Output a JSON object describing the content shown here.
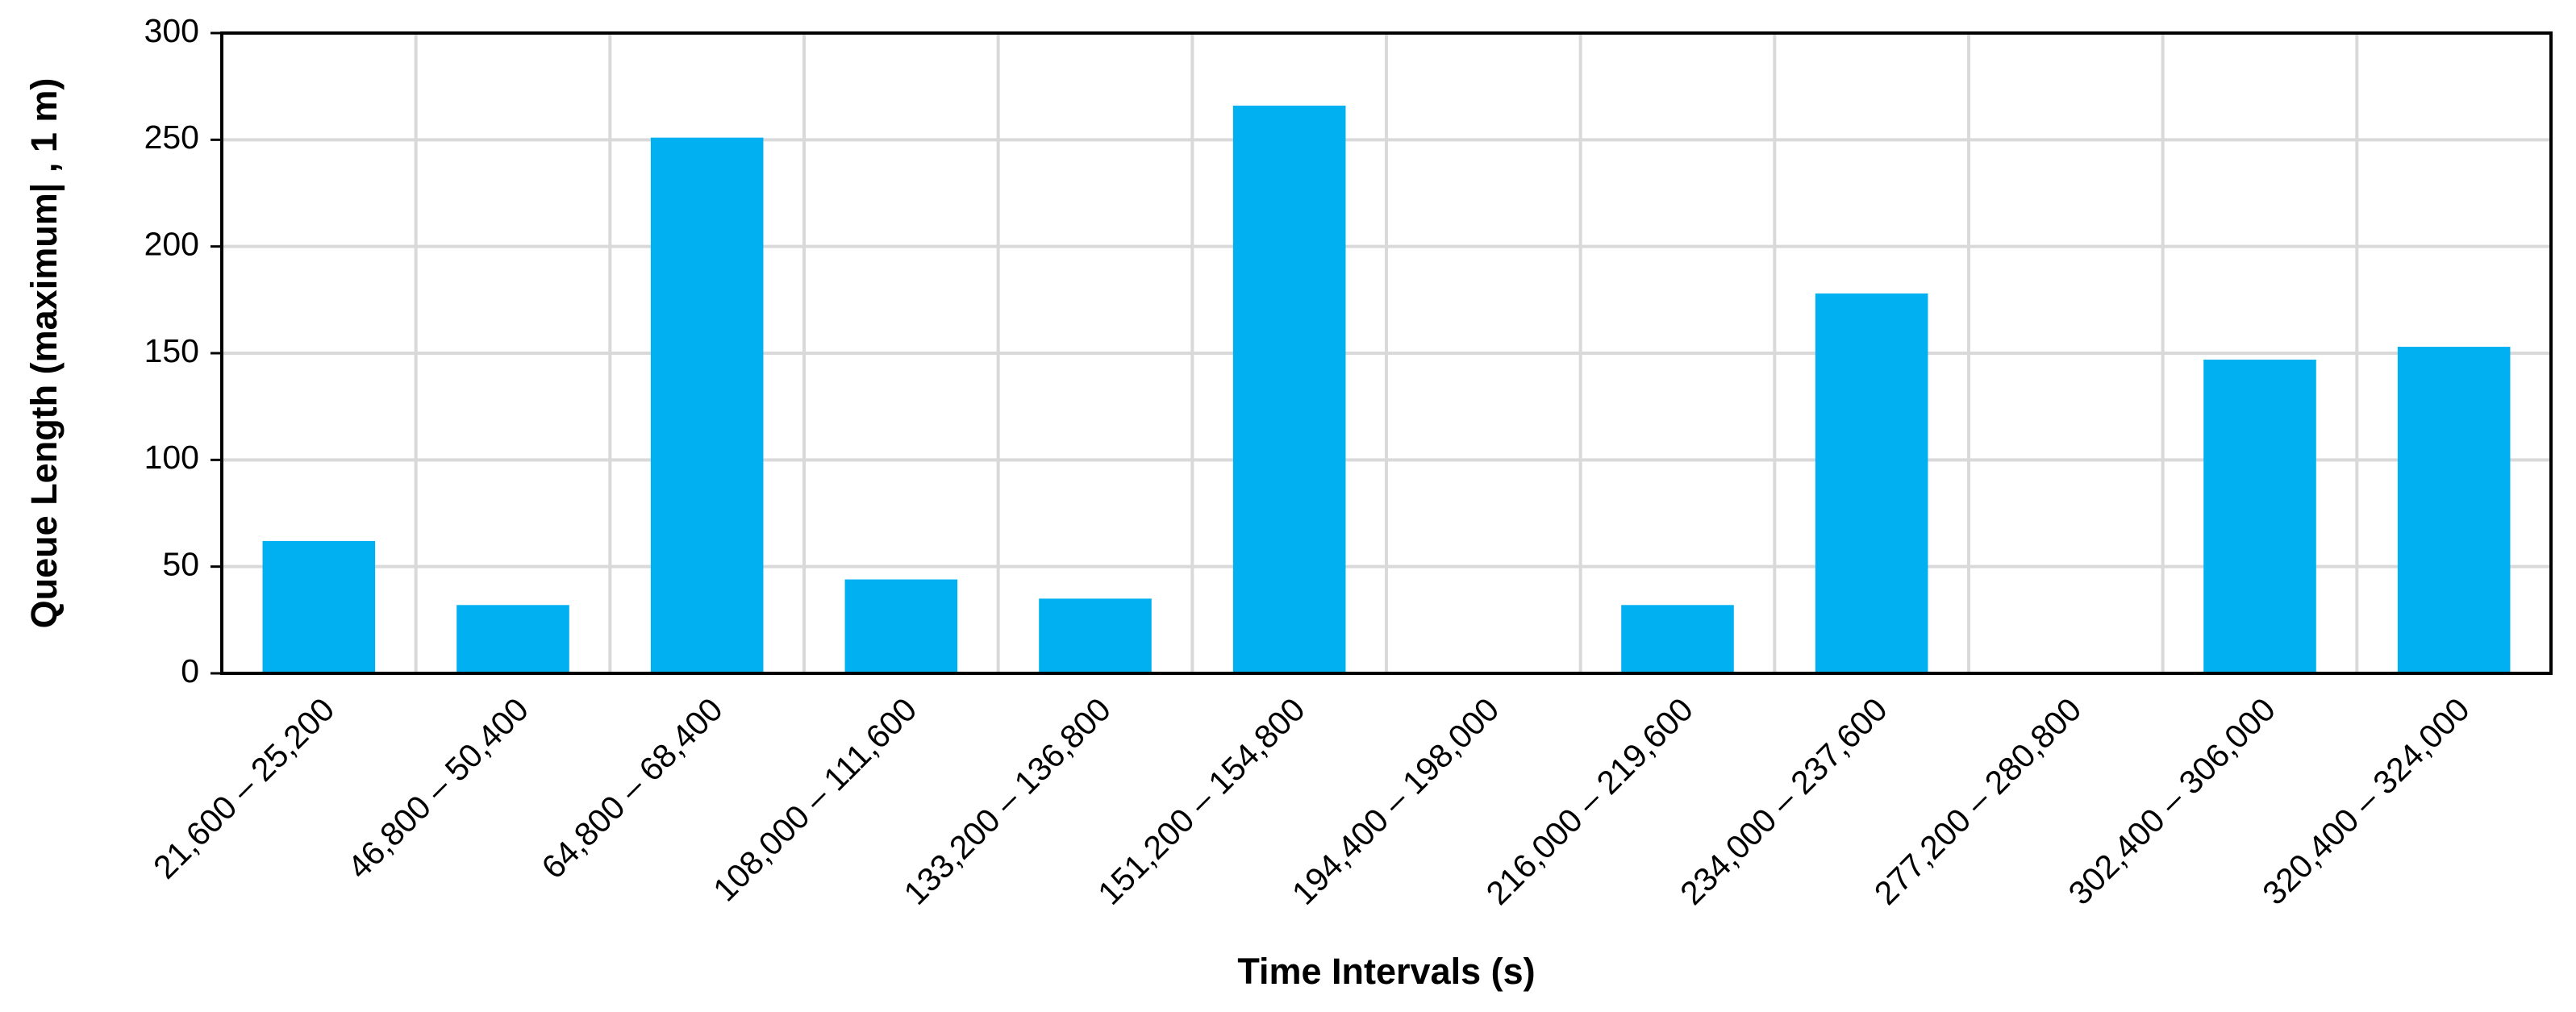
{
  "chart_data": {
    "type": "bar",
    "x_label": "Time Intervals (s)",
    "y_label": "Queue Length (maximum| , 1 m)",
    "categories": [
      "21,600 – 25,200",
      "46,800 – 50,400",
      "64,800 – 68,400",
      "108,000 – 111,600",
      "133,200 – 136,800",
      "151,200 – 154,800",
      "194,400 – 198,000",
      "216,000 – 219,600",
      "234,000 – 237,600",
      "277,200 – 280,800",
      "302,400 – 306,000",
      "320,400 – 324,000"
    ],
    "values": [
      62,
      32,
      251,
      44,
      35,
      266,
      0,
      32,
      178,
      0,
      147,
      153
    ],
    "color": "#00b0f0",
    "ylim": [
      0,
      300
    ],
    "yticks": [
      0,
      50,
      100,
      150,
      200,
      250,
      300
    ],
    "grid": true
  }
}
